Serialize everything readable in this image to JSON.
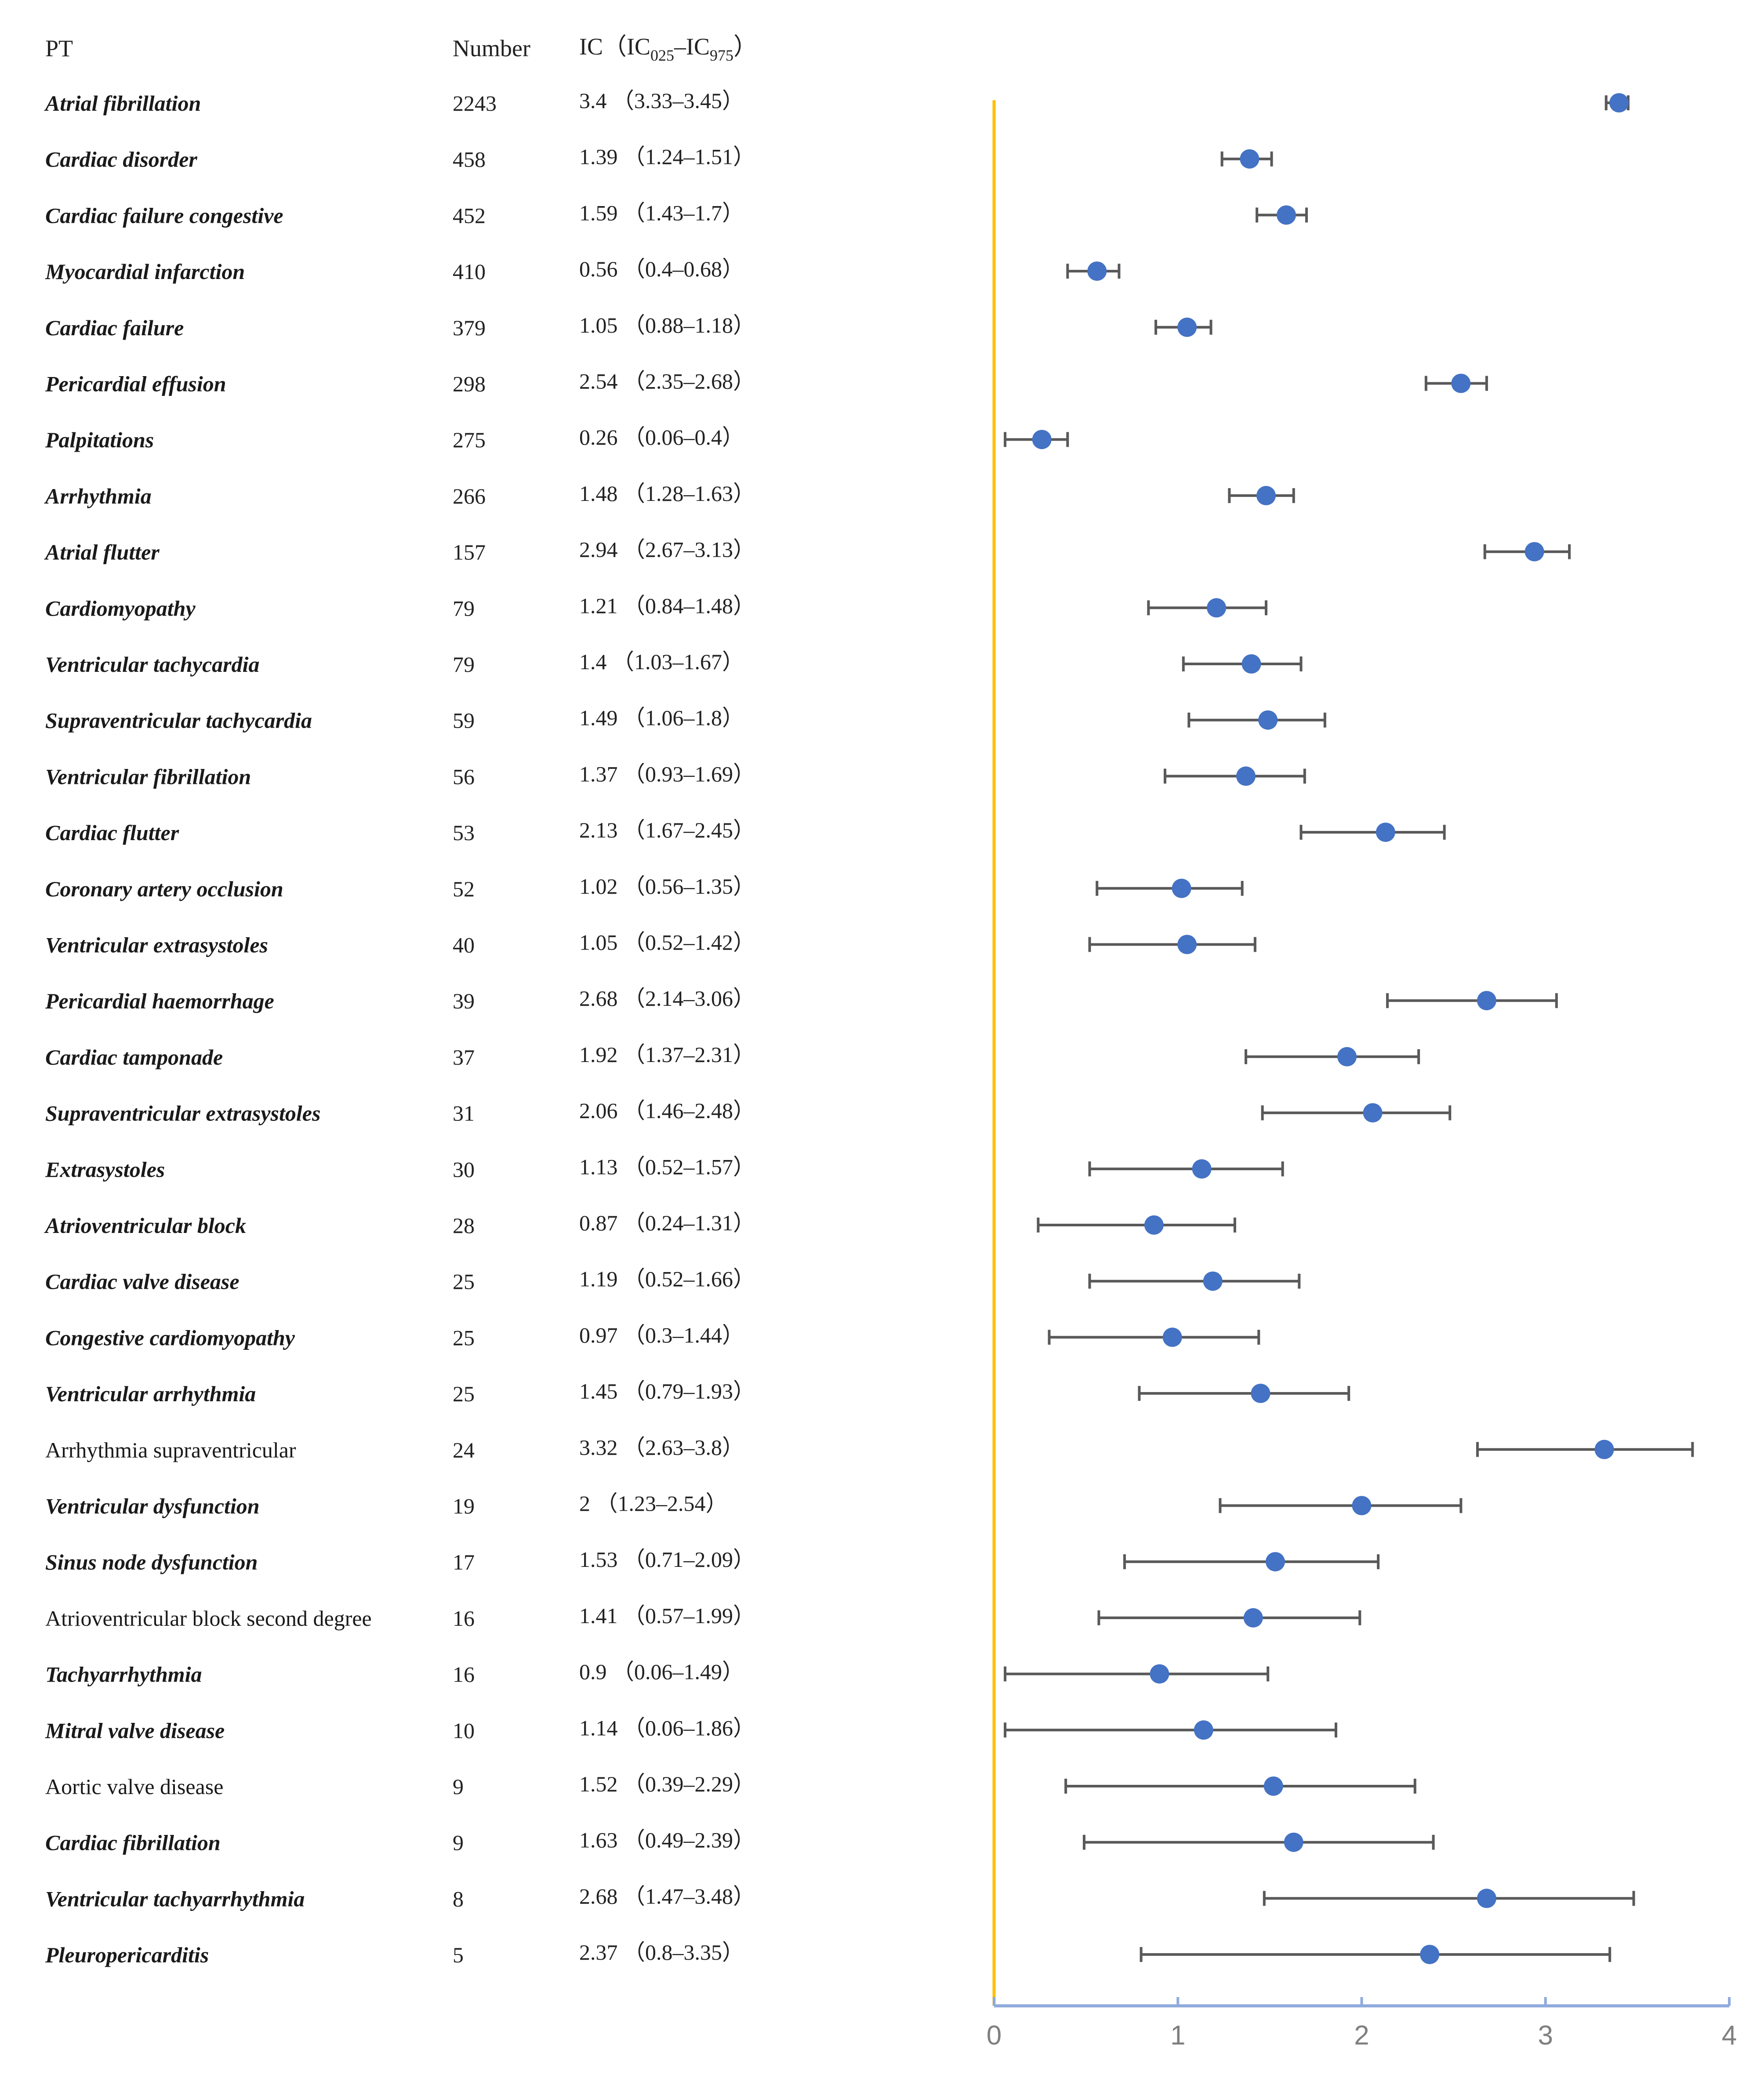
{
  "chart_data": {
    "type": "forest",
    "headers": {
      "pt": "PT",
      "number": "Number",
      "ic_main": "IC（IC",
      "ic_sub1": "025",
      "ic_dash": "–IC",
      "ic_sub2": "975",
      "ic_close": "）"
    },
    "xlim": [
      0,
      4
    ],
    "x_ticks": [
      "0",
      "1",
      "2",
      "3",
      "4"
    ],
    "reference_line": 0,
    "colors": {
      "point": "#4472C4",
      "error_bar": "#595959",
      "reference_line": "#FFC000",
      "axis": "#8FAADC",
      "tick_label": "#7F7F7F"
    },
    "rows": [
      {
        "pt": "Atrial fibrillation",
        "bold": true,
        "number": "2243",
        "ic_text": "3.4 （3.33–3.45）",
        "ic": 3.4,
        "low": 3.33,
        "high": 3.45
      },
      {
        "pt": "Cardiac disorder",
        "bold": true,
        "number": "458",
        "ic_text": "1.39 （1.24–1.51）",
        "ic": 1.39,
        "low": 1.24,
        "high": 1.51
      },
      {
        "pt": "Cardiac failure congestive",
        "bold": true,
        "number": "452",
        "ic_text": "1.59 （1.43–1.7）",
        "ic": 1.59,
        "low": 1.43,
        "high": 1.7
      },
      {
        "pt": "Myocardial infarction",
        "bold": true,
        "number": "410",
        "ic_text": "0.56 （0.4–0.68）",
        "ic": 0.56,
        "low": 0.4,
        "high": 0.68
      },
      {
        "pt": "Cardiac failure",
        "bold": true,
        "number": "379",
        "ic_text": "1.05 （0.88–1.18）",
        "ic": 1.05,
        "low": 0.88,
        "high": 1.18
      },
      {
        "pt": "Pericardial effusion",
        "bold": true,
        "number": "298",
        "ic_text": "2.54 （2.35–2.68）",
        "ic": 2.54,
        "low": 2.35,
        "high": 2.68
      },
      {
        "pt": "Palpitations",
        "bold": true,
        "number": "275",
        "ic_text": "0.26 （0.06–0.4）",
        "ic": 0.26,
        "low": 0.06,
        "high": 0.4
      },
      {
        "pt": "Arrhythmia",
        "bold": true,
        "number": "266",
        "ic_text": "1.48 （1.28–1.63）",
        "ic": 1.48,
        "low": 1.28,
        "high": 1.63
      },
      {
        "pt": "Atrial flutter",
        "bold": true,
        "number": "157",
        "ic_text": "2.94 （2.67–3.13）",
        "ic": 2.94,
        "low": 2.67,
        "high": 3.13
      },
      {
        "pt": "Cardiomyopathy",
        "bold": true,
        "number": "79",
        "ic_text": "1.21 （0.84–1.48）",
        "ic": 1.21,
        "low": 0.84,
        "high": 1.48
      },
      {
        "pt": "Ventricular tachycardia",
        "bold": true,
        "number": "79",
        "ic_text": "1.4 （1.03–1.67）",
        "ic": 1.4,
        "low": 1.03,
        "high": 1.67
      },
      {
        "pt": "Supraventricular tachycardia",
        "bold": true,
        "number": "59",
        "ic_text": "1.49 （1.06–1.8）",
        "ic": 1.49,
        "low": 1.06,
        "high": 1.8
      },
      {
        "pt": "Ventricular fibrillation",
        "bold": true,
        "number": "56",
        "ic_text": "1.37 （0.93–1.69）",
        "ic": 1.37,
        "low": 0.93,
        "high": 1.69
      },
      {
        "pt": "Cardiac flutter",
        "bold": true,
        "number": "53",
        "ic_text": "2.13 （1.67–2.45）",
        "ic": 2.13,
        "low": 1.67,
        "high": 2.45
      },
      {
        "pt": "Coronary artery occlusion",
        "bold": true,
        "number": "52",
        "ic_text": "1.02 （0.56–1.35）",
        "ic": 1.02,
        "low": 0.56,
        "high": 1.35
      },
      {
        "pt": "Ventricular extrasystoles",
        "bold": true,
        "number": "40",
        "ic_text": "1.05 （0.52–1.42）",
        "ic": 1.05,
        "low": 0.52,
        "high": 1.42
      },
      {
        "pt": "Pericardial haemorrhage",
        "bold": true,
        "number": "39",
        "ic_text": "2.68 （2.14–3.06）",
        "ic": 2.68,
        "low": 2.14,
        "high": 3.06
      },
      {
        "pt": "Cardiac tamponade",
        "bold": true,
        "number": "37",
        "ic_text": "1.92 （1.37–2.31）",
        "ic": 1.92,
        "low": 1.37,
        "high": 2.31
      },
      {
        "pt": "Supraventricular extrasystoles",
        "bold": true,
        "number": "31",
        "ic_text": "2.06 （1.46–2.48）",
        "ic": 2.06,
        "low": 1.46,
        "high": 2.48
      },
      {
        "pt": "Extrasystoles",
        "bold": true,
        "number": "30",
        "ic_text": "1.13 （0.52–1.57）",
        "ic": 1.13,
        "low": 0.52,
        "high": 1.57
      },
      {
        "pt": "Atrioventricular block",
        "bold": true,
        "number": "28",
        "ic_text": "0.87 （0.24–1.31）",
        "ic": 0.87,
        "low": 0.24,
        "high": 1.31
      },
      {
        "pt": "Cardiac valve disease",
        "bold": true,
        "number": "25",
        "ic_text": "1.19 （0.52–1.66）",
        "ic": 1.19,
        "low": 0.52,
        "high": 1.66
      },
      {
        "pt": "Congestive cardiomyopathy",
        "bold": true,
        "number": "25",
        "ic_text": "0.97 （0.3–1.44）",
        "ic": 0.97,
        "low": 0.3,
        "high": 1.44
      },
      {
        "pt": "Ventricular arrhythmia",
        "bold": true,
        "number": "25",
        "ic_text": "1.45 （0.79–1.93）",
        "ic": 1.45,
        "low": 0.79,
        "high": 1.93
      },
      {
        "pt": "Arrhythmia supraventricular",
        "bold": false,
        "number": "24",
        "ic_text": "3.32 （2.63–3.8）",
        "ic": 3.32,
        "low": 2.63,
        "high": 3.8
      },
      {
        "pt": "Ventricular dysfunction",
        "bold": true,
        "number": "19",
        "ic_text": "2 （1.23–2.54）",
        "ic": 2,
        "low": 1.23,
        "high": 2.54
      },
      {
        "pt": "Sinus node dysfunction",
        "bold": true,
        "number": "17",
        "ic_text": "1.53 （0.71–2.09）",
        "ic": 1.53,
        "low": 0.71,
        "high": 2.09
      },
      {
        "pt": "Atrioventricular block second degree",
        "bold": false,
        "number": "16",
        "ic_text": "1.41 （0.57–1.99）",
        "ic": 1.41,
        "low": 0.57,
        "high": 1.99
      },
      {
        "pt": "Tachyarrhythmia",
        "bold": true,
        "number": "16",
        "ic_text": "0.9 （0.06–1.49）",
        "ic": 0.9,
        "low": 0.06,
        "high": 1.49
      },
      {
        "pt": "Mitral valve disease",
        "bold": true,
        "number": "10",
        "ic_text": "1.14 （0.06–1.86）",
        "ic": 1.14,
        "low": 0.06,
        "high": 1.86
      },
      {
        "pt": "Aortic valve disease",
        "bold": false,
        "number": "9",
        "ic_text": "1.52 （0.39–2.29）",
        "ic": 1.52,
        "low": 0.39,
        "high": 2.29
      },
      {
        "pt": "Cardiac fibrillation",
        "bold": true,
        "number": "9",
        "ic_text": "1.63 （0.49–2.39）",
        "ic": 1.63,
        "low": 0.49,
        "high": 2.39
      },
      {
        "pt": "Ventricular tachyarrhythmia",
        "bold": true,
        "number": "8",
        "ic_text": "2.68 （1.47–3.48）",
        "ic": 2.68,
        "low": 1.47,
        "high": 3.48
      },
      {
        "pt": "Pleuropericarditis",
        "bold": true,
        "number": "5",
        "ic_text": "2.37 （0.8–3.35）",
        "ic": 2.37,
        "low": 0.8,
        "high": 3.35
      }
    ]
  }
}
